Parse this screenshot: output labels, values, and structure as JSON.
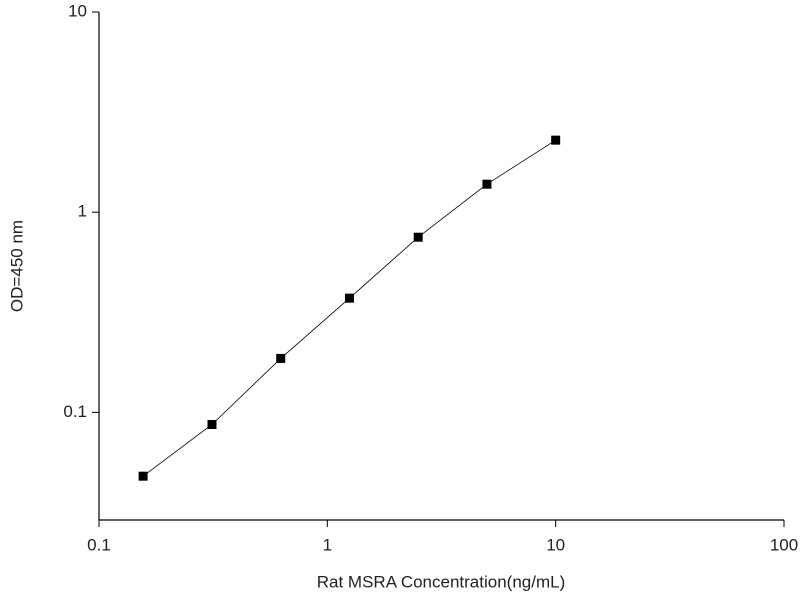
{
  "chart_data": {
    "type": "line",
    "x_label": "Rat MSRA Concentration(ng/mL)",
    "y_label": "OD=450 nm",
    "x": [
      0.156,
      0.3125,
      0.625,
      1.25,
      2.5,
      5,
      10
    ],
    "series": [
      {
        "color": "#000000",
        "values": [
          0.048,
          0.087,
          0.186,
          0.372,
          0.75,
          1.38,
          2.29
        ]
      }
    ],
    "xscale": "log",
    "yscale": "log",
    "xlim": [
      0.1,
      100
    ],
    "ylim": [
      0.029,
      10
    ],
    "xticks": [
      0.1,
      1,
      10,
      100
    ],
    "yticks": [
      0.1,
      1,
      10
    ],
    "grid": false
  }
}
